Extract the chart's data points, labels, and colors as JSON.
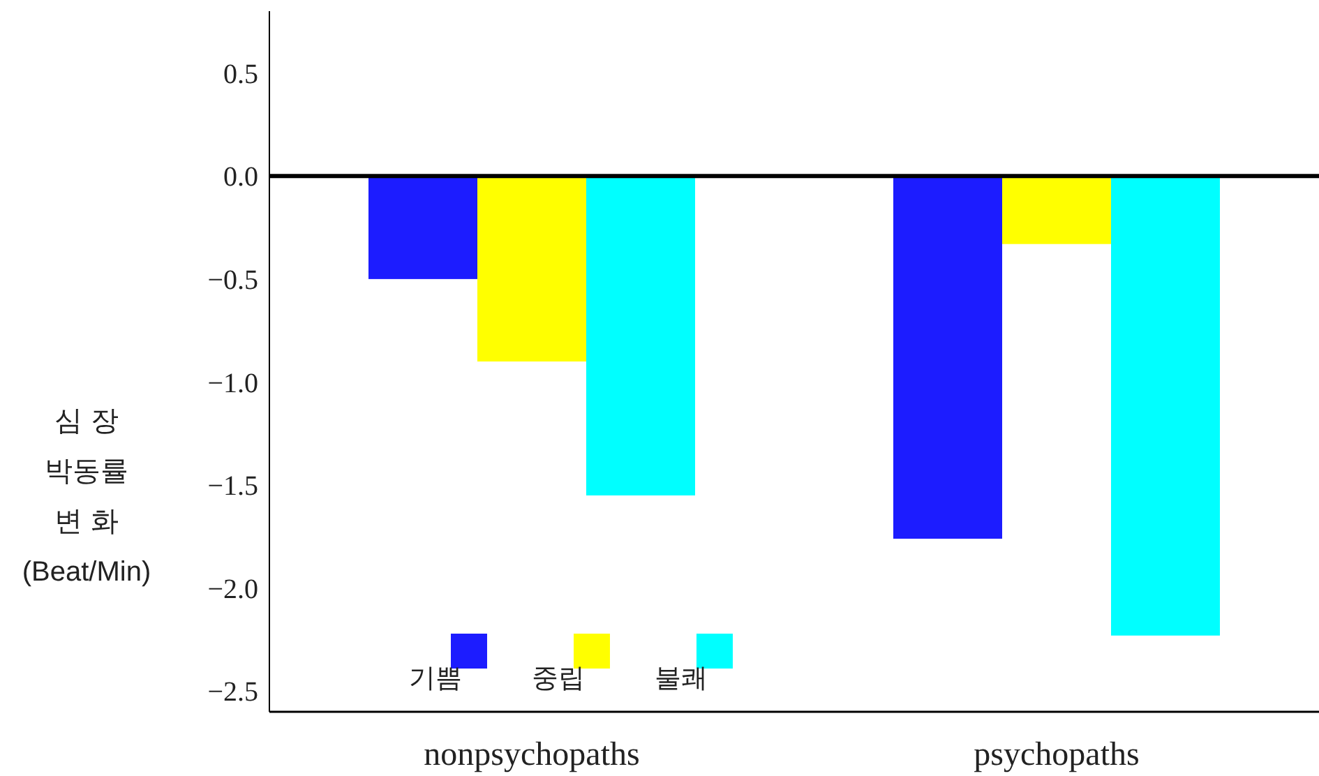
{
  "chart_data": {
    "type": "bar",
    "categories": [
      "nonpsychopaths",
      "psychopaths"
    ],
    "series": [
      {
        "name": "기쁨",
        "color": "#1c1cff",
        "values": [
          -0.5,
          -1.76
        ]
      },
      {
        "name": "중립",
        "color": "#ffff00",
        "values": [
          -0.9,
          -0.33
        ]
      },
      {
        "name": "불쾌",
        "color": "#00ffff",
        "values": [
          -1.55,
          -2.23
        ]
      }
    ],
    "ylabel": "심  장\n박동률\n변  화\n(Beat/Min)",
    "ylim": [
      -2.6,
      0.8
    ],
    "yticks": [
      {
        "value": 0.5,
        "label": "0.5"
      },
      {
        "value": 0,
        "label": "0.0"
      },
      {
        "value": -0.5,
        "label": "−0.5"
      },
      {
        "value": -1,
        "label": "−1.0"
      },
      {
        "value": -1.5,
        "label": "−1.5"
      },
      {
        "value": -2,
        "label": "−2.0"
      },
      {
        "value": -2.5,
        "label": "−2.5"
      }
    ],
    "ref_lines": [
      {
        "axis": "y",
        "value": 0,
        "color": "#000000"
      }
    ],
    "legend": "bottom left"
  }
}
